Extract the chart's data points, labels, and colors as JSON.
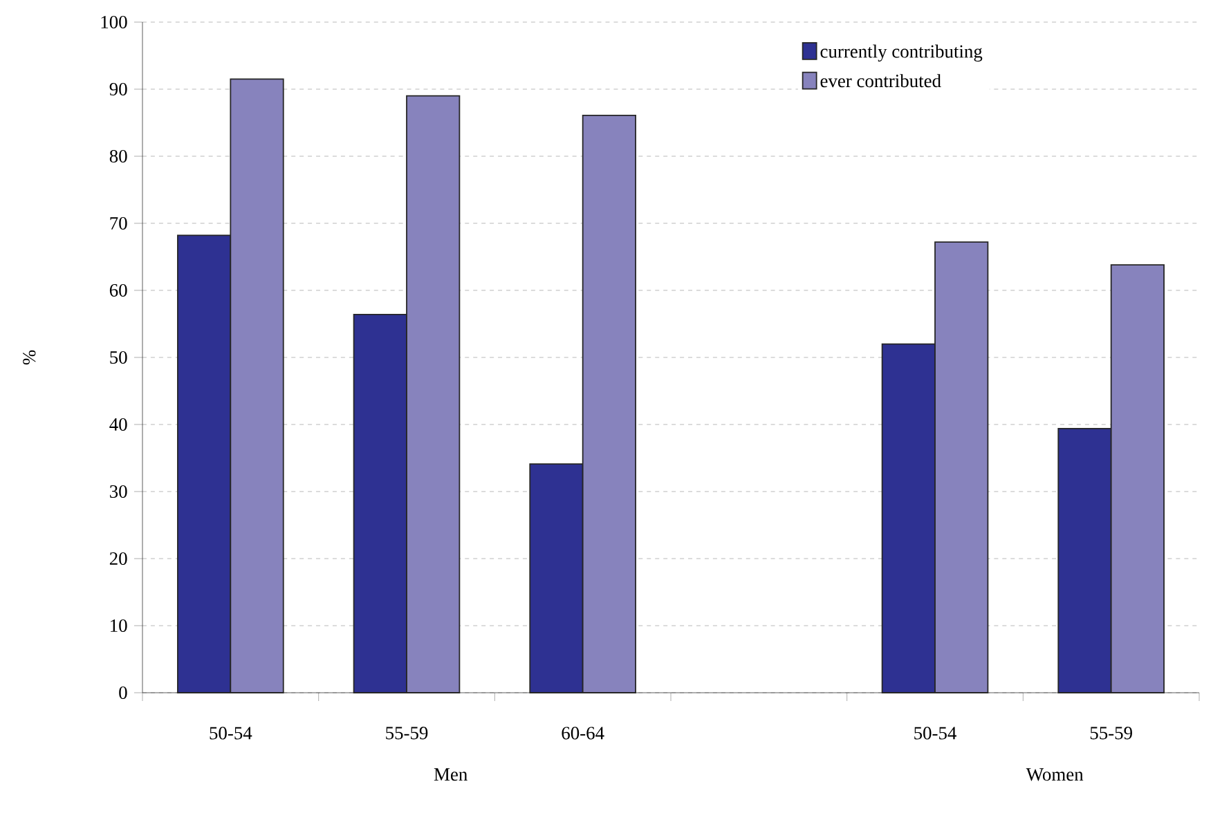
{
  "chart_data": {
    "type": "bar",
    "ylabel": "%",
    "categories": [
      "50-54",
      "55-59",
      "60-64",
      null,
      "50-54",
      "55-59"
    ],
    "series": [
      {
        "name": "currently contributing",
        "color": "#2e3192",
        "values": [
          68.2,
          56.4,
          34.1,
          null,
          52.0,
          39.4
        ]
      },
      {
        "name": "ever contributed",
        "color": "#8783bd",
        "values": [
          91.5,
          89.0,
          86.1,
          null,
          67.2,
          63.8
        ]
      }
    ],
    "ylim": [
      0,
      100
    ],
    "yticks": [
      0,
      10,
      20,
      30,
      40,
      50,
      60,
      70,
      80,
      90,
      100
    ],
    "grid": "y",
    "legend": "top right",
    "annotations": [
      "Men",
      "Women"
    ]
  }
}
